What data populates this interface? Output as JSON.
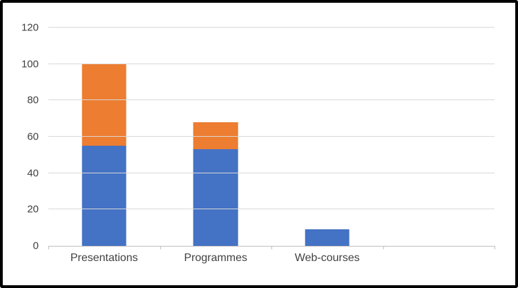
{
  "chart_data": {
    "type": "bar",
    "stacked": true,
    "title": "",
    "xlabel": "",
    "ylabel": "",
    "categories": [
      "Presentations",
      "Programmes",
      "Web-courses"
    ],
    "series": [
      {
        "name": "bottom-segment",
        "color": "#4472C4",
        "values": [
          55,
          53,
          9
        ]
      },
      {
        "name": "top-segment",
        "color": "#ED7D31",
        "values": [
          45,
          15,
          0
        ]
      }
    ],
    "ylim": [
      0,
      120
    ],
    "ytick_step": 20,
    "ytick_labels": [
      "0",
      "20",
      "40",
      "60",
      "80",
      "100",
      "120"
    ],
    "grid": true,
    "legend": false,
    "category_slots": 4
  },
  "colors": {
    "grid": "#D9D9D9",
    "axis": "#BFBFBF",
    "tick_label": "#404040",
    "frame_border": "#000000",
    "background": "#FFFFFF"
  }
}
